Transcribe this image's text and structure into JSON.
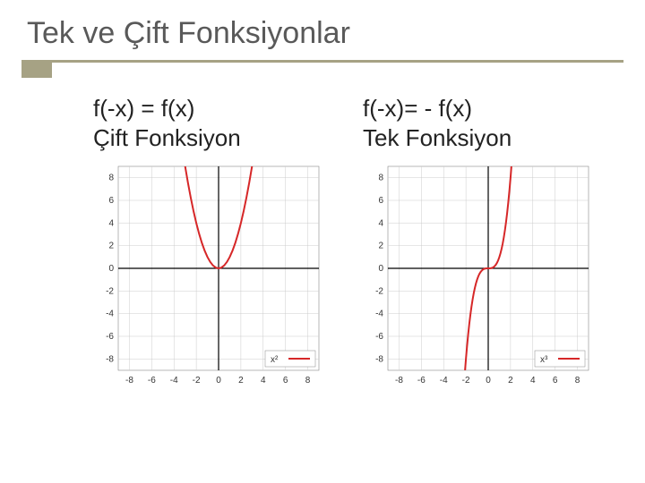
{
  "title": "Tek ve Çift Fonksiyonlar",
  "accent_color": "#a6a284",
  "text_color": "#595959",
  "columns": [
    {
      "formula_lines": [
        "f(-x) = f(x)",
        "Çift Fonksiyon"
      ],
      "chart": {
        "type": "line",
        "function": "x^2",
        "legend_label": "x²",
        "xlim": [
          -9,
          9
        ],
        "ylim": [
          -9,
          9
        ],
        "xticks": [
          -8,
          -6,
          -4,
          -2,
          0,
          2,
          4,
          6,
          8
        ],
        "yticks": [
          -8,
          -6,
          -4,
          -2,
          0,
          2,
          4,
          6,
          8
        ],
        "grid_color": "#cccccc",
        "axis_color": "#000000",
        "curve_color": "#d62728",
        "curve_width": 2,
        "background_color": "#ffffff",
        "tick_fontsize": 10,
        "legend_pos": "bottom-right",
        "points": [
          [
            -3.0,
            9.0
          ],
          [
            -2.75,
            7.5625
          ],
          [
            -2.5,
            6.25
          ],
          [
            -2.25,
            5.0625
          ],
          [
            -2.0,
            4.0
          ],
          [
            -1.75,
            3.0625
          ],
          [
            -1.5,
            2.25
          ],
          [
            -1.25,
            1.5625
          ],
          [
            -1.0,
            1.0
          ],
          [
            -0.75,
            0.5625
          ],
          [
            -0.5,
            0.25
          ],
          [
            -0.25,
            0.0625
          ],
          [
            0.0,
            0.0
          ],
          [
            0.25,
            0.0625
          ],
          [
            0.5,
            0.25
          ],
          [
            0.75,
            0.5625
          ],
          [
            1.0,
            1.0
          ],
          [
            1.25,
            1.5625
          ],
          [
            1.5,
            2.25
          ],
          [
            1.75,
            3.0625
          ],
          [
            2.0,
            4.0
          ],
          [
            2.25,
            5.0625
          ],
          [
            2.5,
            6.25
          ],
          [
            2.75,
            7.5625
          ],
          [
            3.0,
            9.0
          ]
        ]
      }
    },
    {
      "formula_lines": [
        "f(-x)= - f(x)",
        "Tek Fonksiyon"
      ],
      "chart": {
        "type": "line",
        "function": "x^3",
        "legend_label": "x³",
        "xlim": [
          -9,
          9
        ],
        "ylim": [
          -9,
          9
        ],
        "xticks": [
          -8,
          -6,
          -4,
          -2,
          0,
          2,
          4,
          6,
          8
        ],
        "yticks": [
          -8,
          -6,
          -4,
          -2,
          0,
          2,
          4,
          6,
          8
        ],
        "grid_color": "#cccccc",
        "axis_color": "#000000",
        "curve_color": "#d62728",
        "curve_width": 2,
        "background_color": "#ffffff",
        "tick_fontsize": 10,
        "legend_pos": "bottom-right",
        "points": [
          [
            -2.08,
            -9.0
          ],
          [
            -2.0,
            -8.0
          ],
          [
            -1.9,
            -6.859
          ],
          [
            -1.8,
            -5.832
          ],
          [
            -1.7,
            -4.913
          ],
          [
            -1.6,
            -4.096
          ],
          [
            -1.5,
            -3.375
          ],
          [
            -1.4,
            -2.744
          ],
          [
            -1.3,
            -2.197
          ],
          [
            -1.2,
            -1.728
          ],
          [
            -1.1,
            -1.331
          ],
          [
            -1.0,
            -1.0
          ],
          [
            -0.9,
            -0.729
          ],
          [
            -0.8,
            -0.512
          ],
          [
            -0.7,
            -0.343
          ],
          [
            -0.6,
            -0.216
          ],
          [
            -0.5,
            -0.125
          ],
          [
            -0.4,
            -0.064
          ],
          [
            -0.3,
            -0.027
          ],
          [
            -0.2,
            -0.008
          ],
          [
            -0.1,
            -0.001
          ],
          [
            0.0,
            0.0
          ],
          [
            0.1,
            0.001
          ],
          [
            0.2,
            0.008
          ],
          [
            0.3,
            0.027
          ],
          [
            0.4,
            0.064
          ],
          [
            0.5,
            0.125
          ],
          [
            0.6,
            0.216
          ],
          [
            0.7,
            0.343
          ],
          [
            0.8,
            0.512
          ],
          [
            0.9,
            0.729
          ],
          [
            1.0,
            1.0
          ],
          [
            1.1,
            1.331
          ],
          [
            1.2,
            1.728
          ],
          [
            1.3,
            2.197
          ],
          [
            1.4,
            2.744
          ],
          [
            1.5,
            3.375
          ],
          [
            1.6,
            4.096
          ],
          [
            1.7,
            4.913
          ],
          [
            1.8,
            5.832
          ],
          [
            1.9,
            6.859
          ],
          [
            2.0,
            8.0
          ],
          [
            2.08,
            9.0
          ]
        ]
      }
    }
  ]
}
